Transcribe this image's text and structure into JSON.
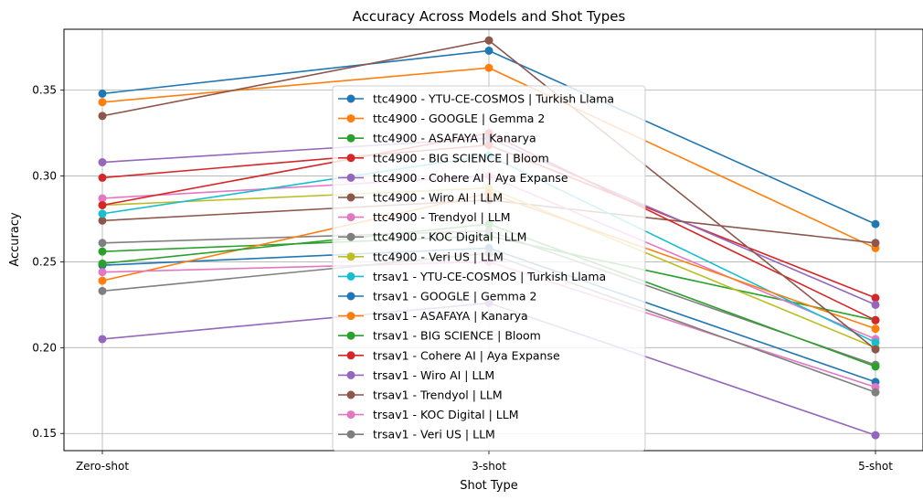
{
  "chart_data": {
    "type": "line",
    "title": "Accuracy Across Models and Shot Types",
    "xlabel": "Shot Type",
    "ylabel": "Accuracy",
    "categories": [
      "Zero-shot",
      "3-shot",
      "5-shot"
    ],
    "ylim": [
      0.14,
      0.3855
    ],
    "yticks": [
      0.15,
      0.2,
      0.25,
      0.3,
      0.35
    ],
    "ytick_labels": [
      "0.15",
      "0.20",
      "0.25",
      "0.30",
      "0.35"
    ],
    "grid": true,
    "legend_position": "center",
    "series": [
      {
        "name": "ttc4900 - YTU-CE-COSMOS | Turkish Llama",
        "color": "#1f77b4",
        "values": [
          0.348,
          0.373,
          0.272
        ]
      },
      {
        "name": "ttc4900 - GOOGLE | Gemma 2",
        "color": "#ff7f0e",
        "values": [
          0.343,
          0.363,
          0.258
        ]
      },
      {
        "name": "ttc4900 - ASAFAYA | Kanarya",
        "color": "#2ca02c",
        "values": [
          0.256,
          0.265,
          0.216
        ]
      },
      {
        "name": "ttc4900 - BIG SCIENCE | Bloom",
        "color": "#d62728",
        "values": [
          0.299,
          0.318,
          0.229
        ]
      },
      {
        "name": "ttc4900 - Cohere AI | Aya Expanse",
        "color": "#9467bd",
        "values": [
          0.308,
          0.322,
          0.225
        ]
      },
      {
        "name": "ttc4900 - Wiro AI | LLM",
        "color": "#8c564b",
        "values": [
          0.274,
          0.286,
          0.261
        ]
      },
      {
        "name": "ttc4900 - Trendyol | LLM",
        "color": "#e377c2",
        "values": [
          0.287,
          0.3,
          0.205
        ]
      },
      {
        "name": "ttc4900 - KOC Digital | LLM",
        "color": "#7f7f7f",
        "values": [
          0.261,
          0.268,
          0.19
        ]
      },
      {
        "name": "ttc4900 - Veri US | LLM",
        "color": "#bcbd22",
        "values": [
          0.283,
          0.293,
          0.2
        ]
      },
      {
        "name": "trsav1 - YTU-CE-COSMOS | Turkish Llama",
        "color": "#17becf",
        "values": [
          0.278,
          0.312,
          0.203
        ]
      },
      {
        "name": "trsav1 - GOOGLE | Gemma 2",
        "color": "#1f77b4",
        "values": [
          0.248,
          0.258,
          0.18
        ]
      },
      {
        "name": "trsav1 - ASAFAYA | Kanarya",
        "color": "#ff7f0e",
        "values": [
          0.239,
          0.29,
          0.211
        ]
      },
      {
        "name": "trsav1 - BIG SCIENCE | Bloom",
        "color": "#2ca02c",
        "values": [
          0.249,
          0.272,
          0.189
        ]
      },
      {
        "name": "trsav1 - Cohere AI | Aya Expanse",
        "color": "#d62728",
        "values": [
          0.283,
          0.325,
          0.216
        ]
      },
      {
        "name": "trsav1 - Wiro AI | LLM",
        "color": "#9467bd",
        "values": [
          0.205,
          0.226,
          0.149
        ]
      },
      {
        "name": "trsav1 - Trendyol | LLM",
        "color": "#8c564b",
        "values": [
          0.335,
          0.379,
          0.199
        ]
      },
      {
        "name": "trsav1 - KOC Digital | LLM",
        "color": "#e377c2",
        "values": [
          0.244,
          0.25,
          0.177
        ]
      },
      {
        "name": "trsav1 - Veri US | LLM",
        "color": "#7f7f7f",
        "values": [
          0.233,
          0.255,
          0.174
        ]
      }
    ]
  }
}
